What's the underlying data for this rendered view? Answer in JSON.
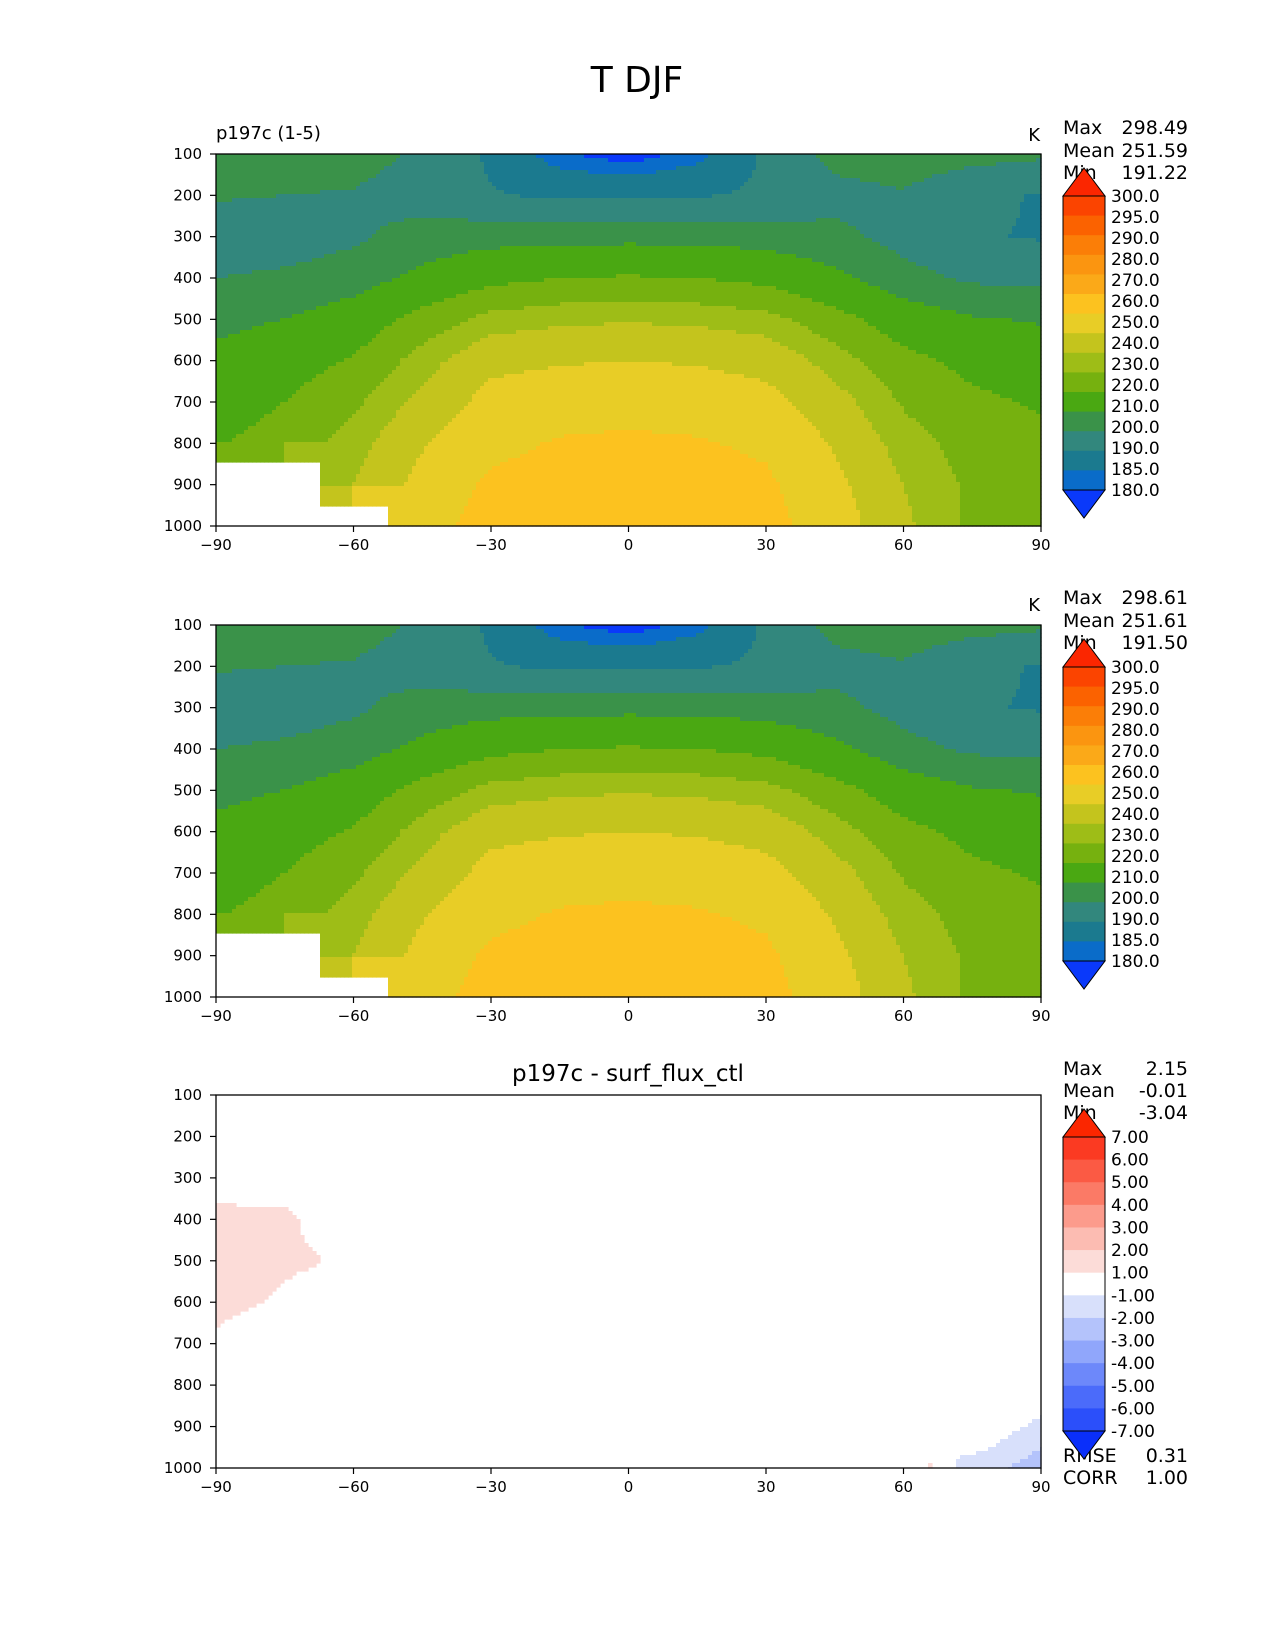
{
  "figure_title": "T DJF",
  "colormaps": {
    "temperature": [
      "#0a39fa",
      "#0a6cc9",
      "#1b7a8f",
      "#32877d",
      "#3a9249",
      "#4aa812",
      "#76b10f",
      "#9ebd17",
      "#c4c41d",
      "#e8cd26",
      "#fcc21f",
      "#fba918",
      "#fb9510",
      "#fb7e07",
      "#fb6200",
      "#fb4400",
      "#fb2600"
    ],
    "difference": [
      "#0a2ffa",
      "#2b4ffa",
      "#4b6bfa",
      "#6d88fa",
      "#90a6fb",
      "#b4c3fb",
      "#d8e0fb",
      "#ffffff",
      "#fcdcd8",
      "#fcbcb2",
      "#fc9b8c",
      "#fb7a66",
      "#fb5a44",
      "#fb3a22",
      "#fb2600"
    ]
  },
  "chart_data": [
    {
      "type": "contour",
      "title_left": "p197c (1-5)",
      "title_center": "",
      "units": "K",
      "xlim": [
        -90,
        90
      ],
      "ylim": [
        1000,
        100
      ],
      "x_ticks": [
        "−90",
        "−60",
        "−30",
        "0",
        "30",
        "60",
        "90"
      ],
      "x_tick_values": [
        -90,
        -60,
        -30,
        0,
        30,
        60,
        90
      ],
      "y_ticks": [
        "100",
        "200",
        "300",
        "400",
        "500",
        "600",
        "700",
        "800",
        "900",
        "1000"
      ],
      "y_tick_values": [
        100,
        200,
        300,
        400,
        500,
        600,
        700,
        800,
        900,
        1000
      ],
      "stats": [
        {
          "label": "Max",
          "value": "298.49"
        },
        {
          "label": "Mean",
          "value": "251.59"
        },
        {
          "label": "Min",
          "value": "191.22"
        }
      ],
      "colorbar_levels": [
        "180.0",
        "185.0",
        "190.0",
        "200.0",
        "210.0",
        "220.0",
        "230.0",
        "240.0",
        "250.0",
        "260.0",
        "270.0",
        "280.0",
        "290.0",
        "295.0",
        "300.0"
      ],
      "colormap": "temperature",
      "sequence": [
        195,
        201,
        212,
        224,
        235,
        248,
        258,
        266,
        277,
        289,
        298
      ],
      "field": {
        "lat": [
          -90,
          -75,
          -60,
          -45,
          -30,
          -15,
          0,
          15,
          30,
          45,
          60,
          75,
          90
        ],
        "plev": [
          100,
          200,
          300,
          400,
          500,
          600,
          700,
          800,
          900,
          1000
        ],
        "values": [
          [
            231,
            230,
            229,
            222,
            210,
            196,
            191,
            198,
            214,
            228,
            230,
            228,
            226
          ],
          [
            225,
            224,
            223,
            218,
            213,
            210,
            210,
            211,
            214,
            220,
            223,
            215,
            211
          ],
          [
            218,
            218,
            222,
            229,
            231,
            232,
            232,
            232,
            230,
            227,
            220,
            213,
            211
          ],
          [
            224,
            226,
            230,
            238,
            245,
            248,
            249,
            248,
            245,
            238,
            228,
            222,
            222
          ],
          [
            232,
            235,
            241,
            252,
            261,
            264,
            265,
            264,
            261,
            252,
            242,
            236,
            234
          ],
          [
            238,
            243,
            249,
            262,
            274,
            276,
            277,
            276,
            273,
            262,
            251,
            245,
            242
          ],
          [
            242,
            248,
            256,
            269,
            281,
            284,
            285,
            284,
            281,
            270,
            257,
            250,
            247
          ],
          [
            247,
            253,
            262,
            276,
            286,
            290,
            291,
            290,
            287,
            276,
            262,
            254,
            250
          ],
          [
            null,
            null,
            266,
            281,
            291,
            294,
            295,
            294,
            291,
            280,
            266,
            256,
            252
          ],
          [
            null,
            null,
            null,
            284,
            294,
            297,
            298,
            297,
            293,
            283,
            268,
            256,
            251
          ]
        ]
      }
    },
    {
      "type": "contour",
      "title_left": "",
      "title_center": "",
      "units": "K",
      "xlim": [
        -90,
        90
      ],
      "ylim": [
        1000,
        100
      ],
      "x_ticks": [
        "−90",
        "−60",
        "−30",
        "0",
        "30",
        "60",
        "90"
      ],
      "x_tick_values": [
        -90,
        -60,
        -30,
        0,
        30,
        60,
        90
      ],
      "y_ticks": [
        "100",
        "200",
        "300",
        "400",
        "500",
        "600",
        "700",
        "800",
        "900",
        "1000"
      ],
      "y_tick_values": [
        100,
        200,
        300,
        400,
        500,
        600,
        700,
        800,
        900,
        1000
      ],
      "stats": [
        {
          "label": "Max",
          "value": "298.61"
        },
        {
          "label": "Mean",
          "value": "251.61"
        },
        {
          "label": "Min",
          "value": "191.50"
        }
      ],
      "colorbar_levels": [
        "180.0",
        "185.0",
        "190.0",
        "200.0",
        "210.0",
        "220.0",
        "230.0",
        "240.0",
        "250.0",
        "260.0",
        "270.0",
        "280.0",
        "290.0",
        "295.0",
        "300.0"
      ],
      "colormap": "temperature",
      "sequence": [
        195,
        201,
        212,
        224,
        235,
        248,
        258,
        266,
        277,
        289,
        298
      ],
      "field": {
        "lat": [
          -90,
          -75,
          -60,
          -45,
          -30,
          -15,
          0,
          15,
          30,
          45,
          60,
          75,
          90
        ],
        "plev": [
          100,
          200,
          300,
          400,
          500,
          600,
          700,
          800,
          900,
          1000
        ],
        "values": [
          [
            231,
            230,
            229,
            222,
            210,
            196,
            191,
            198,
            214,
            228,
            230,
            228,
            226
          ],
          [
            225,
            224,
            223,
            218,
            213,
            210,
            210,
            211,
            214,
            220,
            223,
            215,
            211
          ],
          [
            218,
            218,
            222,
            229,
            231,
            232,
            232,
            232,
            230,
            227,
            220,
            213,
            211
          ],
          [
            224,
            226,
            230,
            238,
            245,
            248,
            249,
            248,
            245,
            238,
            228,
            222,
            222
          ],
          [
            232,
            235,
            241,
            252,
            261,
            264,
            265,
            264,
            261,
            252,
            242,
            236,
            234
          ],
          [
            238,
            243,
            249,
            262,
            274,
            276,
            277,
            276,
            273,
            262,
            251,
            245,
            242
          ],
          [
            242,
            248,
            256,
            269,
            281,
            284,
            285,
            284,
            281,
            270,
            257,
            250,
            247
          ],
          [
            247,
            253,
            262,
            276,
            286,
            290,
            291,
            290,
            287,
            276,
            262,
            254,
            250
          ],
          [
            null,
            null,
            266,
            281,
            291,
            294,
            295,
            294,
            291,
            280,
            266,
            256,
            252
          ],
          [
            null,
            null,
            null,
            284,
            294,
            297,
            298,
            297,
            293,
            283,
            268,
            256,
            251
          ]
        ]
      }
    },
    {
      "type": "contour",
      "title_left": "",
      "title_center": "p197c - surf_flux_ctl",
      "units": "",
      "xlim": [
        -90,
        90
      ],
      "ylim": [
        1000,
        100
      ],
      "x_ticks": [
        "−90",
        "−60",
        "−30",
        "0",
        "30",
        "60",
        "90"
      ],
      "x_tick_values": [
        -90,
        -60,
        -30,
        0,
        30,
        60,
        90
      ],
      "y_ticks": [
        "100",
        "200",
        "300",
        "400",
        "500",
        "600",
        "700",
        "800",
        "900",
        "1000"
      ],
      "y_tick_values": [
        100,
        200,
        300,
        400,
        500,
        600,
        700,
        800,
        900,
        1000
      ],
      "stats": [
        {
          "label": "Max",
          "value": "2.15"
        },
        {
          "label": "Mean",
          "value": "-0.01"
        },
        {
          "label": "Min",
          "value": "-3.04"
        }
      ],
      "colorbar_levels": [
        "-7.00",
        "-6.00",
        "-5.00",
        "-4.00",
        "-3.00",
        "-2.00",
        "-1.00",
        "1.00",
        "2.00",
        "3.00",
        "4.00",
        "5.00",
        "6.00",
        "7.00"
      ],
      "colormap": "difference",
      "sequence": [
        -7,
        -6,
        -5,
        -4,
        -3,
        -2,
        -1,
        1,
        2,
        3,
        4,
        5,
        6,
        7
      ],
      "metrics": [
        {
          "label": "RMSE",
          "value": "0.31"
        },
        {
          "label": "CORR",
          "value": "1.00"
        }
      ],
      "field": {
        "lat": [
          -90,
          -82,
          -75,
          -68,
          -60,
          -45,
          -30,
          -15,
          0,
          15,
          30,
          45,
          60,
          66,
          72,
          78,
          84,
          90
        ],
        "plev": [
          100,
          200,
          300,
          400,
          500,
          600,
          700,
          800,
          900,
          1000
        ],
        "values": [
          [
            0.1,
            0.1,
            0.1,
            0.1,
            0.0,
            0.0,
            0.0,
            0.0,
            0.0,
            0.0,
            0.0,
            0.0,
            0.0,
            0.0,
            0.0,
            0.0,
            0.0,
            0.0
          ],
          [
            0.2,
            0.2,
            0.1,
            0.1,
            0.0,
            0.0,
            0.0,
            0.0,
            0.0,
            0.0,
            0.0,
            0.0,
            0.0,
            0.0,
            0.0,
            0.0,
            0.0,
            0.0
          ],
          [
            0.4,
            0.3,
            0.2,
            0.1,
            0.0,
            0.0,
            0.0,
            0.0,
            0.0,
            0.0,
            0.0,
            0.0,
            0.0,
            0.0,
            0.0,
            0.0,
            0.0,
            0.0
          ],
          [
            1.4,
            1.3,
            1.3,
            0.6,
            0.1,
            0.0,
            0.0,
            0.0,
            0.0,
            0.0,
            0.0,
            0.0,
            0.0,
            0.0,
            0.0,
            0.0,
            0.0,
            0.0
          ],
          [
            1.7,
            1.4,
            1.2,
            1.1,
            0.2,
            0.0,
            0.0,
            0.0,
            0.0,
            0.0,
            0.0,
            0.0,
            0.0,
            0.0,
            0.0,
            0.0,
            0.0,
            0.0
          ],
          [
            1.3,
            1.1,
            0.8,
            0.3,
            0.0,
            0.0,
            0.0,
            0.0,
            0.0,
            0.0,
            0.0,
            0.0,
            0.0,
            0.0,
            0.0,
            0.0,
            0.0,
            0.0
          ],
          [
            0.8,
            0.3,
            0.1,
            0.0,
            0.0,
            0.0,
            0.0,
            0.0,
            0.0,
            0.0,
            0.0,
            0.0,
            0.0,
            0.0,
            0.0,
            0.0,
            0.0,
            0.0
          ],
          [
            0.2,
            0.1,
            0.0,
            0.0,
            0.0,
            0.0,
            0.0,
            0.0,
            0.0,
            0.0,
            0.0,
            0.0,
            0.0,
            0.0,
            0.0,
            0.0,
            0.0,
            0.0
          ],
          [
            0.0,
            0.0,
            0.0,
            0.0,
            0.0,
            0.0,
            0.0,
            0.0,
            0.0,
            0.0,
            0.0,
            0.0,
            0.0,
            0.0,
            0.0,
            -0.3,
            -0.8,
            -1.3
          ],
          [
            0.0,
            0.0,
            0.0,
            0.0,
            0.0,
            0.0,
            0.0,
            0.0,
            0.0,
            0.0,
            0.0,
            0.0,
            0.0,
            1.2,
            -1.4,
            -1.5,
            -2.1,
            -2.6
          ]
        ]
      }
    }
  ]
}
